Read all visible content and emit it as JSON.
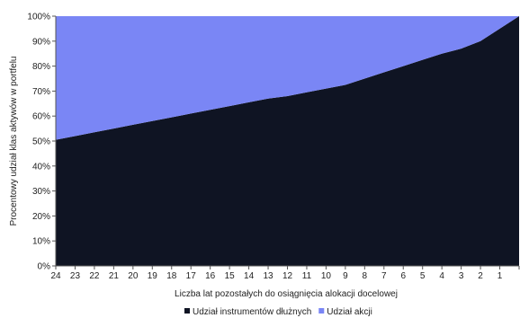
{
  "chart_data": {
    "type": "area",
    "stacked": true,
    "x": [
      "24",
      "23",
      "22",
      "21",
      "20",
      "19",
      "18",
      "17",
      "16",
      "15",
      "14",
      "13",
      "12",
      "11",
      "10",
      "9",
      "8",
      "7",
      "6",
      "5",
      "4",
      "3",
      "2",
      "1",
      ""
    ],
    "series": [
      {
        "name": "Udział instrumentów dłużnych",
        "color": "#0f1423",
        "values": [
          50.5,
          52.0,
          53.5,
          55.0,
          56.5,
          58.0,
          59.5,
          61.0,
          62.5,
          64.0,
          65.5,
          67.0,
          68.0,
          69.5,
          71.0,
          72.5,
          75.0,
          77.5,
          80.0,
          82.5,
          85.0,
          87.0,
          90.0,
          95.0,
          100.0
        ]
      },
      {
        "name": "Udział akcji",
        "color": "#7a86f5",
        "values": [
          49.5,
          48.0,
          46.5,
          45.0,
          43.5,
          42.0,
          40.5,
          39.0,
          37.5,
          36.0,
          34.5,
          33.0,
          32.0,
          30.5,
          29.0,
          27.5,
          25.0,
          22.5,
          20.0,
          17.5,
          15.0,
          13.0,
          10.0,
          5.0,
          0.0
        ]
      }
    ],
    "yticks": [
      "0%",
      "10%",
      "20%",
      "30%",
      "40%",
      "50%",
      "60%",
      "70%",
      "80%",
      "90%",
      "100%"
    ],
    "ylim": [
      0,
      100
    ],
    "xlabel": "Liczba lat pozostałych do osiągnięcia alokacji docelowej",
    "ylabel": "Procentowy udział klas aktywów w portfelu",
    "legend_position": "bottom"
  }
}
